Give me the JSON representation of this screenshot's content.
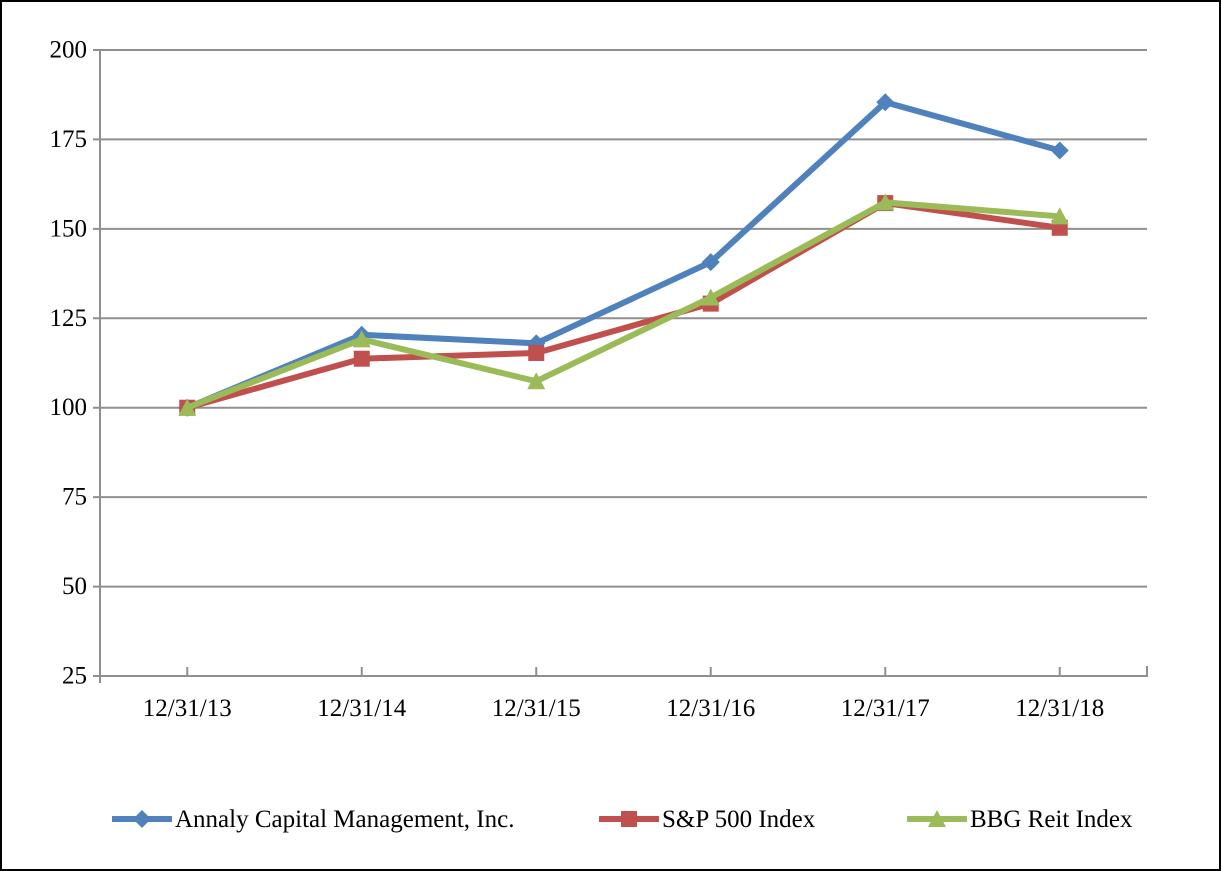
{
  "chart_data": {
    "type": "line",
    "title": "",
    "xlabel": "",
    "ylabel": "",
    "categories": [
      "12/31/13",
      "12/31/14",
      "12/31/15",
      "12/31/16",
      "12/31/17",
      "12/31/18"
    ],
    "series": [
      {
        "name": "Annaly Capital Management, Inc.",
        "color": "#4F81BD",
        "marker": "diamond",
        "values": [
          100.0,
          120.4,
          118.0,
          140.7,
          185.4,
          171.9
        ]
      },
      {
        "name": "S&P 500 Index",
        "color": "#C0504D",
        "marker": "square",
        "values": [
          100.0,
          113.7,
          115.3,
          129.1,
          157.2,
          150.3
        ]
      },
      {
        "name": "BBG Reit Index",
        "color": "#9BBB59",
        "marker": "triangle",
        "values": [
          100.0,
          119.1,
          107.4,
          130.8,
          157.4,
          153.5
        ]
      }
    ],
    "ylim": [
      25,
      200
    ],
    "y_ticks": [
      200,
      175,
      150,
      125,
      100,
      75,
      50,
      25
    ],
    "grid": true,
    "legend_position": "bottom",
    "axis_color": "#8F8F8F",
    "gridline_color": "#8F8F8F",
    "tick_label_color": "#000000",
    "background": "#FFFFFF"
  }
}
